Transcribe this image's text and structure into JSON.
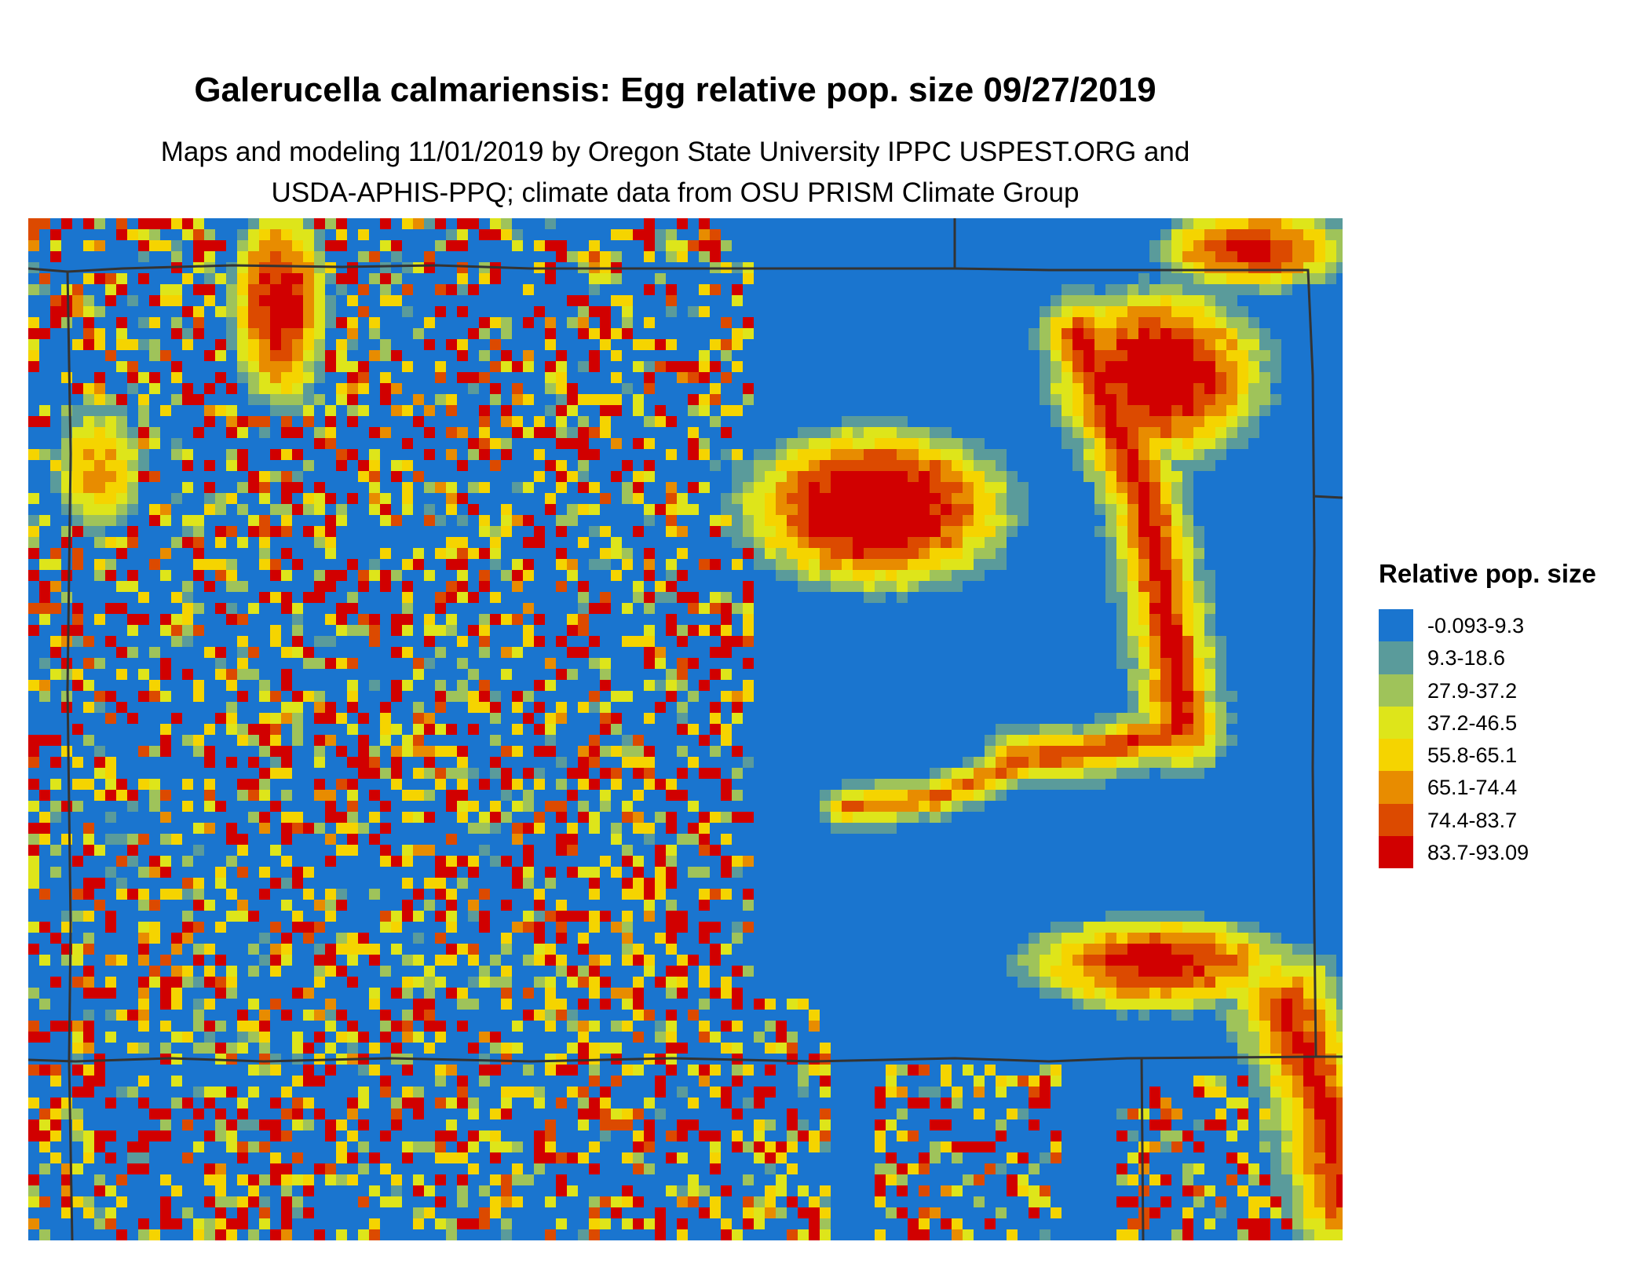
{
  "title": "Galerucella calmariensis: Egg relative pop. size 09/27/2019",
  "subtitle_line1": "Maps and modeling 11/01/2019 by Oregon State University IPPC USPEST.ORG and",
  "subtitle_line2": "USDA-APHIS-PPQ; climate data from OSU PRISM Climate Group",
  "legend": {
    "title": "Relative pop. size",
    "items": [
      {
        "label": "-0.093-9.3",
        "color": "#1a75cf"
      },
      {
        "label": "9.3-18.6",
        "color": "#5a9b9b"
      },
      {
        "label": "27.9-37.2",
        "color": "#9fc35a"
      },
      {
        "label": "37.2-46.5",
        "color": "#dee51a"
      },
      {
        "label": "55.8-65.1",
        "color": "#f5d400"
      },
      {
        "label": "65.1-74.4",
        "color": "#e88c00"
      },
      {
        "label": "74.4-83.7",
        "color": "#dc4a00"
      },
      {
        "label": "83.7-93.09",
        "color": "#d10000"
      }
    ]
  }
}
